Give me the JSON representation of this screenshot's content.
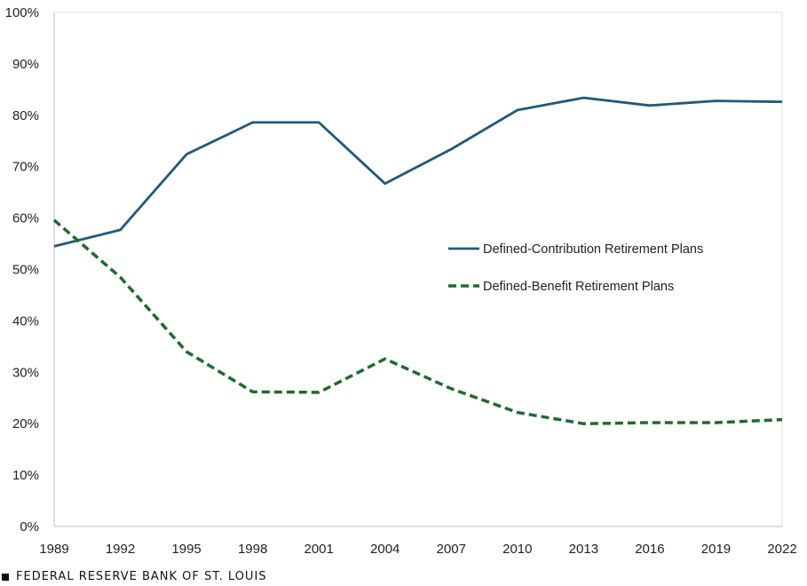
{
  "chart_data": {
    "type": "line",
    "title": "",
    "xlabel": "",
    "ylabel": "",
    "x": [
      1989,
      1992,
      1995,
      1998,
      2001,
      2004,
      2007,
      2010,
      2013,
      2016,
      2019,
      2022
    ],
    "x_tick_labels": [
      "1989",
      "1992",
      "1995",
      "1998",
      "2001",
      "2004",
      "2007",
      "2010",
      "2013",
      "2016",
      "2019",
      "2022"
    ],
    "y_tick_labels": [
      "0%",
      "10%",
      "20%",
      "30%",
      "40%",
      "50%",
      "60%",
      "70%",
      "80%",
      "90%",
      "100%"
    ],
    "ylim": [
      0,
      100
    ],
    "grid": false,
    "legend_position": "right-center",
    "series": [
      {
        "name": "Defined-Contribution Retirement Plans",
        "values": [
          54.5,
          57.7,
          72.4,
          78.6,
          78.6,
          66.7,
          73.4,
          81.0,
          83.4,
          81.9,
          82.8,
          82.6
        ],
        "color": "#1f5a7a",
        "style": "solid"
      },
      {
        "name": "Defined-Benefit Retirement Plans",
        "values": [
          59.6,
          48.5,
          34.0,
          26.2,
          26.1,
          32.6,
          26.8,
          22.2,
          20.0,
          20.2,
          20.2,
          20.8
        ],
        "color": "#1e6b2e",
        "style": "dashed"
      }
    ]
  },
  "footer": {
    "source": "FEDERAL RESERVE BANK OF ST. LOUIS"
  }
}
